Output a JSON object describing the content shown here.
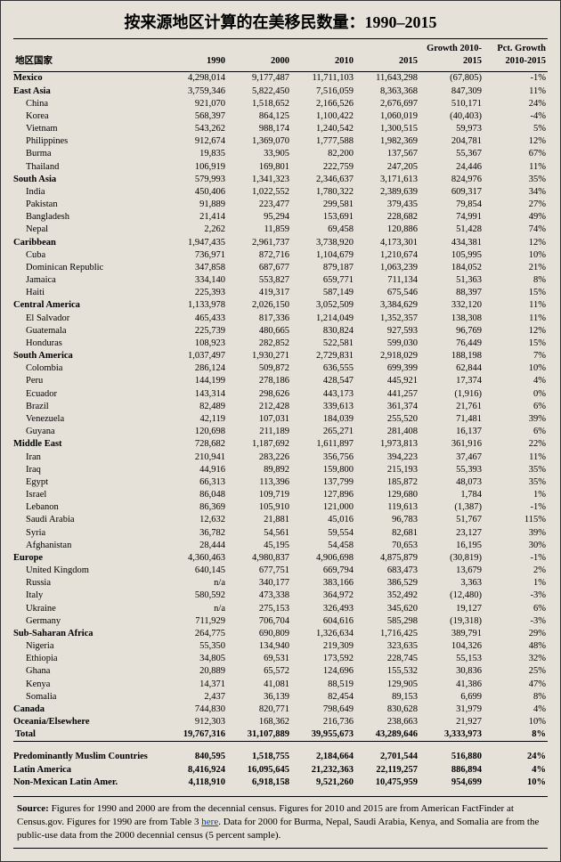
{
  "title": "按来源地区计算的在美移民数量：1990–2015",
  "corner_label": "地区国家",
  "columns": [
    "1990",
    "2000",
    "2010",
    "2015",
    "Growth 2010-2015",
    "Pct. Growth 2010-2015"
  ],
  "rows": [
    {
      "type": "region",
      "name": "Mexico",
      "cells": [
        "4,298,014",
        "9,177,487",
        "11,711,103",
        "11,643,298",
        "(67,805)",
        "-1%"
      ]
    },
    {
      "type": "region",
      "name": "East Asia",
      "cells": [
        "3,759,346",
        "5,822,450",
        "7,516,059",
        "8,363,368",
        "847,309",
        "11%"
      ]
    },
    {
      "type": "country",
      "name": "China",
      "cells": [
        "921,070",
        "1,518,652",
        "2,166,526",
        "2,676,697",
        "510,171",
        "24%"
      ]
    },
    {
      "type": "country",
      "name": "Korea",
      "cells": [
        "568,397",
        "864,125",
        "1,100,422",
        "1,060,019",
        "(40,403)",
        "-4%"
      ]
    },
    {
      "type": "country",
      "name": "Vietnam",
      "cells": [
        "543,262",
        "988,174",
        "1,240,542",
        "1,300,515",
        "59,973",
        "5%"
      ]
    },
    {
      "type": "country",
      "name": "Philippines",
      "cells": [
        "912,674",
        "1,369,070",
        "1,777,588",
        "1,982,369",
        "204,781",
        "12%"
      ]
    },
    {
      "type": "country",
      "name": "Burma",
      "cells": [
        "19,835",
        "33,905",
        "82,200",
        "137,567",
        "55,367",
        "67%"
      ]
    },
    {
      "type": "country",
      "name": "Thailand",
      "cells": [
        "106,919",
        "169,801",
        "222,759",
        "247,205",
        "24,446",
        "11%"
      ]
    },
    {
      "type": "region",
      "name": "South Asia",
      "cells": [
        "579,993",
        "1,341,323",
        "2,346,637",
        "3,171,613",
        "824,976",
        "35%"
      ]
    },
    {
      "type": "country",
      "name": "India",
      "cells": [
        "450,406",
        "1,022,552",
        "1,780,322",
        "2,389,639",
        "609,317",
        "34%"
      ]
    },
    {
      "type": "country",
      "name": "Pakistan",
      "cells": [
        "91,889",
        "223,477",
        "299,581",
        "379,435",
        "79,854",
        "27%"
      ]
    },
    {
      "type": "country",
      "name": "Bangladesh",
      "cells": [
        "21,414",
        "95,294",
        "153,691",
        "228,682",
        "74,991",
        "49%"
      ]
    },
    {
      "type": "country",
      "name": "Nepal",
      "cells": [
        "2,262",
        "11,859",
        "69,458",
        "120,886",
        "51,428",
        "74%"
      ]
    },
    {
      "type": "region",
      "name": "Caribbean",
      "cells": [
        "1,947,435",
        "2,961,737",
        "3,738,920",
        "4,173,301",
        "434,381",
        "12%"
      ]
    },
    {
      "type": "country",
      "name": "Cuba",
      "cells": [
        "736,971",
        "872,716",
        "1,104,679",
        "1,210,674",
        "105,995",
        "10%"
      ]
    },
    {
      "type": "country",
      "name": "Dominican Republic",
      "cells": [
        "347,858",
        "687,677",
        "879,187",
        "1,063,239",
        "184,052",
        "21%"
      ]
    },
    {
      "type": "country",
      "name": "Jamaica",
      "cells": [
        "334,140",
        "553,827",
        "659,771",
        "711,134",
        "51,363",
        "8%"
      ]
    },
    {
      "type": "country",
      "name": "Haiti",
      "cells": [
        "225,393",
        "419,317",
        "587,149",
        "675,546",
        "88,397",
        "15%"
      ]
    },
    {
      "type": "region",
      "name": "Central America",
      "cells": [
        "1,133,978",
        "2,026,150",
        "3,052,509",
        "3,384,629",
        "332,120",
        "11%"
      ]
    },
    {
      "type": "country",
      "name": "El Salvador",
      "cells": [
        "465,433",
        "817,336",
        "1,214,049",
        "1,352,357",
        "138,308",
        "11%"
      ]
    },
    {
      "type": "country",
      "name": "Guatemala",
      "cells": [
        "225,739",
        "480,665",
        "830,824",
        "927,593",
        "96,769",
        "12%"
      ]
    },
    {
      "type": "country",
      "name": "Honduras",
      "cells": [
        "108,923",
        "282,852",
        "522,581",
        "599,030",
        "76,449",
        "15%"
      ]
    },
    {
      "type": "region",
      "name": "South America",
      "cells": [
        "1,037,497",
        "1,930,271",
        "2,729,831",
        "2,918,029",
        "188,198",
        "7%"
      ]
    },
    {
      "type": "country",
      "name": "Colombia",
      "cells": [
        "286,124",
        "509,872",
        "636,555",
        "699,399",
        "62,844",
        "10%"
      ]
    },
    {
      "type": "country",
      "name": "Peru",
      "cells": [
        "144,199",
        "278,186",
        "428,547",
        "445,921",
        "17,374",
        "4%"
      ]
    },
    {
      "type": "country",
      "name": "Ecuador",
      "cells": [
        "143,314",
        "298,626",
        "443,173",
        "441,257",
        "(1,916)",
        "0%"
      ]
    },
    {
      "type": "country",
      "name": "Brazil",
      "cells": [
        "82,489",
        "212,428",
        "339,613",
        "361,374",
        "21,761",
        "6%"
      ]
    },
    {
      "type": "country",
      "name": "Venezuela",
      "cells": [
        "42,119",
        "107,031",
        "184,039",
        "255,520",
        "71,481",
        "39%"
      ]
    },
    {
      "type": "country",
      "name": "Guyana",
      "cells": [
        "120,698",
        "211,189",
        "265,271",
        "281,408",
        "16,137",
        "6%"
      ]
    },
    {
      "type": "region",
      "name": "Middle East",
      "cells": [
        "728,682",
        "1,187,692",
        "1,611,897",
        "1,973,813",
        "361,916",
        "22%"
      ]
    },
    {
      "type": "country",
      "name": "Iran",
      "cells": [
        "210,941",
        "283,226",
        "356,756",
        "394,223",
        "37,467",
        "11%"
      ]
    },
    {
      "type": "country",
      "name": "Iraq",
      "cells": [
        "44,916",
        "89,892",
        "159,800",
        "215,193",
        "55,393",
        "35%"
      ]
    },
    {
      "type": "country",
      "name": "Egypt",
      "cells": [
        "66,313",
        "113,396",
        "137,799",
        "185,872",
        "48,073",
        "35%"
      ]
    },
    {
      "type": "country",
      "name": "Israel",
      "cells": [
        "86,048",
        "109,719",
        "127,896",
        "129,680",
        "1,784",
        "1%"
      ]
    },
    {
      "type": "country",
      "name": "Lebanon",
      "cells": [
        "86,369",
        "105,910",
        "121,000",
        "119,613",
        "(1,387)",
        "-1%"
      ]
    },
    {
      "type": "country",
      "name": "Saudi Arabia",
      "cells": [
        "12,632",
        "21,881",
        "45,016",
        "96,783",
        "51,767",
        "115%"
      ]
    },
    {
      "type": "country",
      "name": "Syria",
      "cells": [
        "36,782",
        "54,561",
        "59,554",
        "82,681",
        "23,127",
        "39%"
      ]
    },
    {
      "type": "country",
      "name": "Afghanistan",
      "cells": [
        "28,444",
        "45,195",
        "54,458",
        "70,653",
        "16,195",
        "30%"
      ]
    },
    {
      "type": "region",
      "name": "Europe",
      "cells": [
        "4,360,463",
        "4,980,837",
        "4,906,698",
        "4,875,879",
        "(30,819)",
        "-1%"
      ]
    },
    {
      "type": "country",
      "name": "United Kingdom",
      "cells": [
        "640,145",
        "677,751",
        "669,794",
        "683,473",
        "13,679",
        "2%"
      ]
    },
    {
      "type": "country",
      "name": "Russia",
      "cells": [
        "n/a",
        "340,177",
        "383,166",
        "386,529",
        "3,363",
        "1%"
      ]
    },
    {
      "type": "country",
      "name": "Italy",
      "cells": [
        "580,592",
        "473,338",
        "364,972",
        "352,492",
        "(12,480)",
        "-3%"
      ]
    },
    {
      "type": "country",
      "name": "Ukraine",
      "cells": [
        "n/a",
        "275,153",
        "326,493",
        "345,620",
        "19,127",
        "6%"
      ]
    },
    {
      "type": "country",
      "name": "Germany",
      "cells": [
        "711,929",
        "706,704",
        "604,616",
        "585,298",
        "(19,318)",
        "-3%"
      ]
    },
    {
      "type": "region",
      "name": "Sub-Saharan Africa",
      "cells": [
        "264,775",
        "690,809",
        "1,326,634",
        "1,716,425",
        "389,791",
        "29%"
      ]
    },
    {
      "type": "country",
      "name": "Nigeria",
      "cells": [
        "55,350",
        "134,940",
        "219,309",
        "323,635",
        "104,326",
        "48%"
      ]
    },
    {
      "type": "country",
      "name": "Ethiopia",
      "cells": [
        "34,805",
        "69,531",
        "173,592",
        "228,745",
        "55,153",
        "32%"
      ]
    },
    {
      "type": "country",
      "name": "Ghana",
      "cells": [
        "20,889",
        "65,572",
        "124,696",
        "155,532",
        "30,836",
        "25%"
      ]
    },
    {
      "type": "country",
      "name": "Kenya",
      "cells": [
        "14,371",
        "41,081",
        "88,519",
        "129,905",
        "41,386",
        "47%"
      ]
    },
    {
      "type": "country",
      "name": "Somalia",
      "cells": [
        "2,437",
        "36,139",
        "82,454",
        "89,153",
        "6,699",
        "8%"
      ]
    },
    {
      "type": "region",
      "name": "Canada",
      "cells": [
        "744,830",
        "820,771",
        "798,649",
        "830,628",
        "31,979",
        "4%"
      ]
    },
    {
      "type": "region",
      "name": "Oceania/Elsewhere",
      "cells": [
        "912,303",
        "168,362",
        "216,736",
        "238,663",
        "21,927",
        "10%"
      ]
    },
    {
      "type": "total",
      "name": "Total",
      "cells": [
        "19,767,316",
        "31,107,889",
        "39,955,673",
        "43,289,646",
        "3,333,973",
        "8%"
      ]
    }
  ],
  "summary": [
    {
      "name": "Predominantly Muslim Countries",
      "cells": [
        "840,595",
        "1,518,755",
        "2,184,664",
        "2,701,544",
        "516,880",
        "24%"
      ]
    },
    {
      "name": "Latin America",
      "cells": [
        "8,416,924",
        "16,095,645",
        "21,232,363",
        "22,119,257",
        "886,894",
        "4%"
      ]
    },
    {
      "name": "Non-Mexican Latin Amer.",
      "cells": [
        "4,118,910",
        "6,918,158",
        "9,521,260",
        "10,475,959",
        "954,699",
        "10%"
      ]
    }
  ],
  "source": {
    "label": "Source:",
    "text_before": "Figures for 1990 and 2000 are from the decennial census. Figures for 2010 and 2015 are from American FactFinder at Census.gov. Figures for 1990 are from Table 3 ",
    "link_text": "here",
    "text_after": ". Data for 2000 for Burma, Nepal, Saudi Arabia, Kenya, and Somalia are from the public-use data from the 2000 decennial census (5 percent sample)."
  }
}
